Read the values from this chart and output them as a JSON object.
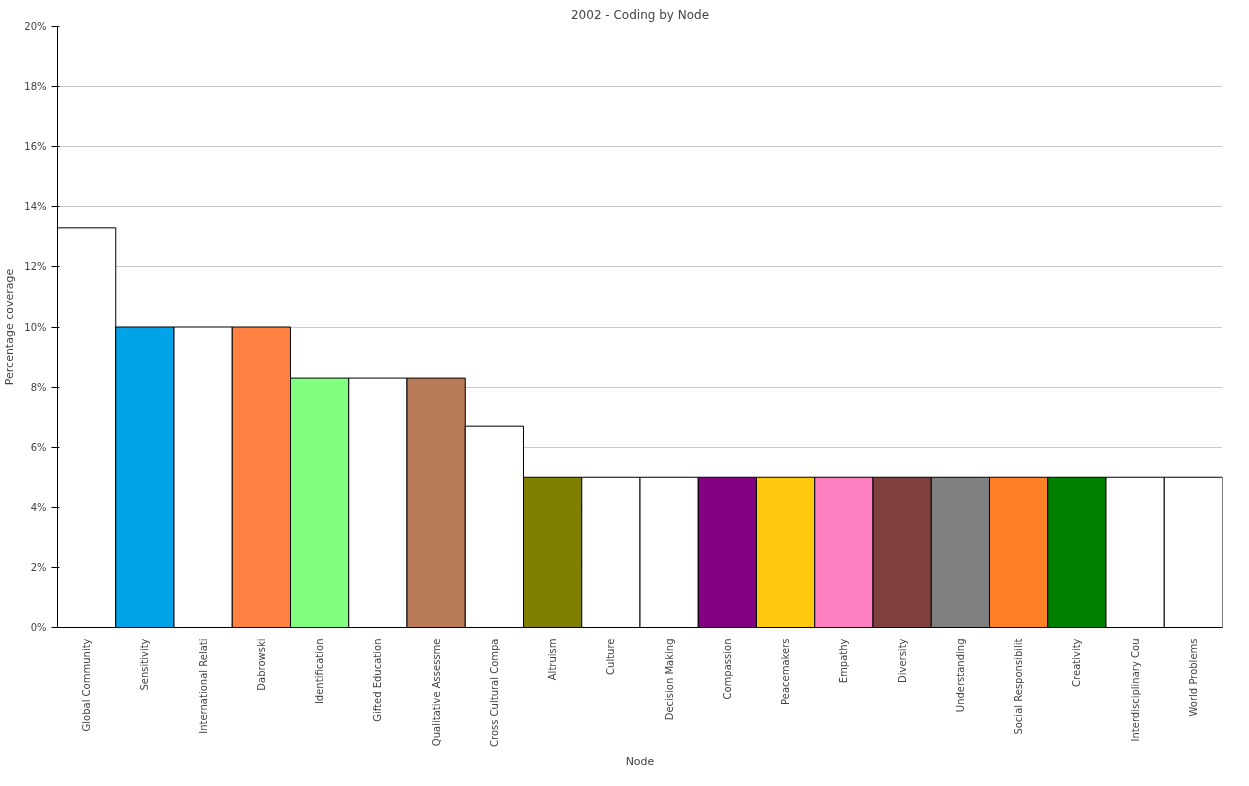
{
  "chart_data": {
    "type": "bar",
    "title": "2002 - Coding by Node",
    "xlabel": "Node",
    "ylabel": "Percentage coverage",
    "categories": [
      "Global Community",
      "Sensitivity",
      "International Relati",
      "Dabrowski",
      "Identification",
      "Gifted Education",
      "Qualitative Assessme",
      "Cross Cultural Compa",
      "Altruism",
      "Culture",
      "Decision Making",
      "Compassion",
      "Peacemakers",
      "Empathy",
      "Diversity",
      "Understanding",
      "Social Responsibilit",
      "Creativity",
      "Interdisciplinary Cou",
      "World Problems"
    ],
    "values": [
      13.3,
      10,
      10,
      10,
      8.3,
      8.3,
      8.3,
      6.7,
      5,
      5,
      5,
      5,
      5,
      5,
      5,
      5,
      5,
      5,
      5,
      5
    ],
    "colors": [
      "#ffffff",
      "#00a2e8",
      "#ffffff",
      "#ff8040",
      "#80ff80",
      "#ffffff",
      "#b97a57",
      "#ffffff",
      "#808000",
      "#ffffff",
      "#ffffff",
      "#800080",
      "#ffc90e",
      "#ff80c0",
      "#804040",
      "#808080",
      "#ff7f27",
      "#008000",
      "#ffffff",
      "#ffffff"
    ],
    "ylim": [
      0,
      20
    ],
    "yticks": [
      {
        "value": 0,
        "label": "0%"
      },
      {
        "value": 2,
        "label": "2%"
      },
      {
        "value": 4,
        "label": "4%"
      },
      {
        "value": 6,
        "label": "6%"
      },
      {
        "value": 8,
        "label": "8%"
      },
      {
        "value": 10,
        "label": "10%"
      },
      {
        "value": 12,
        "label": "12%"
      },
      {
        "value": 14,
        "label": "14%"
      },
      {
        "value": 16,
        "label": "16%"
      },
      {
        "value": 18,
        "label": "18%"
      },
      {
        "value": 20,
        "label": "20%"
      }
    ],
    "grid": "y"
  }
}
